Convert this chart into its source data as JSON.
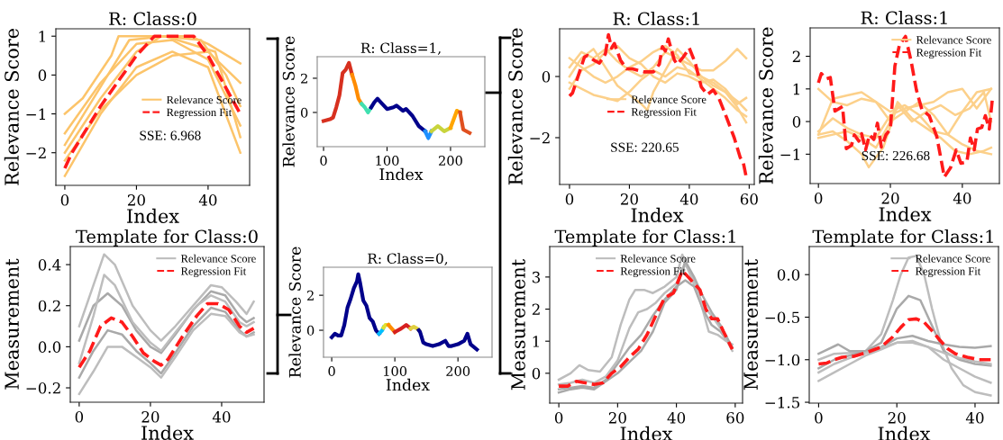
{
  "chart_data": [
    {
      "type": "line",
      "title": "R: Class:0",
      "xlabel": "Index",
      "ylabel": "Relevance Score",
      "xlim": [
        -2.5,
        51.6
      ],
      "ylim": [
        -2.84,
        1.19
      ],
      "xticks": [
        0,
        20,
        40
      ],
      "yticks": [
        {
          "value": -2,
          "label": "−2"
        },
        {
          "value": -1,
          "label": "−1"
        },
        0,
        1
      ],
      "legend": "center right",
      "grid": false,
      "annotations": [
        "SSE: 6.968"
      ],
      "series": [
        {
          "name": "Relevance Score",
          "color": "#fcc46a",
          "x": [
            0,
            10,
            20,
            30,
            40,
            49
          ],
          "values": [
            -2.6,
            -1.0,
            0.2,
            0.6,
            0.2,
            -2.0
          ]
        },
        {
          "color": "#fcc46a",
          "x": [
            0,
            5,
            13,
            15,
            25,
            35,
            40,
            49
          ],
          "values": [
            -1.0,
            -0.6,
            0.5,
            1.0,
            1.0,
            1.0,
            0.8,
            0.3
          ]
        },
        {
          "color": "#fcc46a",
          "x": [
            0,
            10,
            20,
            27,
            38,
            45,
            49
          ],
          "values": [
            -2.0,
            -0.6,
            0.6,
            1.0,
            0.9,
            0,
            -0.8
          ]
        },
        {
          "color": "#fcc46a",
          "x": [
            0,
            10,
            20,
            30,
            40,
            49
          ],
          "values": [
            -1.5,
            -0.2,
            0.8,
            0.9,
            0.4,
            -1.3
          ]
        },
        {
          "color": "#fcc46a",
          "x": [
            0,
            10,
            20,
            30,
            40,
            49
          ],
          "values": [
            -2.2,
            -0.9,
            0.0,
            0.5,
            0.6,
            -0.2
          ]
        },
        {
          "color": "#fcc46a",
          "x": [
            0,
            8,
            18,
            28,
            42,
            49
          ],
          "values": [
            -1.8,
            -0.6,
            0.9,
            1.0,
            0.6,
            -1.6
          ]
        },
        {
          "name": "Regression Fit",
          "color": "#ff1a1a",
          "line_style": "dashed",
          "x": [
            0,
            2,
            10,
            20,
            25,
            36,
            40,
            49
          ],
          "values": [
            -2.4,
            -2.0,
            -0.8,
            0.5,
            1.0,
            1.0,
            0.5,
            -1.0
          ]
        }
      ]
    },
    {
      "type": "line",
      "title": "Template for Class:0",
      "xlabel": "Index",
      "ylabel": "Measurement",
      "xlim": [
        -2.5,
        51.9
      ],
      "ylim": [
        -0.27,
        0.488
      ],
      "xticks": [
        0,
        20,
        40
      ],
      "yticks": [
        {
          "value": -0.2,
          "label": "−0.2"
        },
        {
          "value": 0,
          "label": "0.0"
        },
        0.2,
        0.4
      ],
      "legend": "upper right",
      "grid": false,
      "series": [
        {
          "name": "Relevance Score",
          "color": "#bdbdbd",
          "x": [
            0,
            4,
            7,
            10,
            15,
            20,
            23,
            27,
            33,
            37,
            40,
            44,
            47,
            49
          ],
          "values": [
            0.1,
            0.3,
            0.45,
            0.4,
            0.2,
            0.08,
            0.03,
            0.1,
            0.22,
            0.3,
            0.29,
            0.22,
            0.16,
            0.22
          ]
        },
        {
          "color": "#a9a9a9",
          "x": [
            0,
            4,
            8,
            12,
            16,
            20,
            23,
            27,
            32,
            37,
            41,
            45,
            47,
            49
          ],
          "values": [
            0.03,
            0.2,
            0.26,
            0.2,
            0.08,
            0.0,
            -0.03,
            0.06,
            0.18,
            0.27,
            0.25,
            0.15,
            0.12,
            0.14
          ]
        },
        {
          "color": "#a9a9a9",
          "x": [
            0,
            4,
            8,
            12,
            16,
            20,
            23,
            27,
            32,
            37,
            41,
            45,
            47,
            49
          ],
          "values": [
            -0.15,
            -0.02,
            0.08,
            0.06,
            -0.02,
            -0.08,
            -0.13,
            -0.03,
            0.1,
            0.19,
            0.17,
            0.08,
            0.05,
            0.07
          ]
        },
        {
          "color": "#bdbdbd",
          "x": [
            0,
            4,
            8,
            12,
            16,
            20,
            23,
            27,
            32,
            37,
            41,
            45,
            47,
            49
          ],
          "values": [
            -0.23,
            -0.12,
            0.0,
            0.0,
            -0.05,
            -0.1,
            -0.15,
            -0.05,
            0.08,
            0.16,
            0.15,
            0.07,
            0.05,
            0.06
          ]
        },
        {
          "color": "#bdbdbd",
          "x": [
            0,
            4,
            7,
            10,
            15,
            20,
            23,
            27,
            33,
            37,
            41,
            45,
            47,
            49
          ],
          "values": [
            -0.08,
            0.15,
            0.35,
            0.3,
            0.12,
            0.02,
            -0.02,
            0.07,
            0.2,
            0.25,
            0.22,
            0.12,
            0.1,
            0.12
          ]
        },
        {
          "name": "Regression Fit",
          "color": "#ff1a1a",
          "line_style": "dashed",
          "x": [
            0,
            3,
            6,
            9,
            12,
            15,
            18,
            21,
            23,
            25,
            29,
            33,
            36,
            39,
            42,
            45,
            47,
            49
          ],
          "values": [
            -0.1,
            -0.02,
            0.1,
            0.14,
            0.12,
            0.05,
            -0.03,
            -0.07,
            -0.09,
            -0.06,
            0.05,
            0.15,
            0.21,
            0.21,
            0.18,
            0.1,
            0.07,
            0.09
          ]
        }
      ]
    },
    {
      "type": "line",
      "title": "R: Class=1,",
      "xlabel": "Index",
      "ylabel": "Relevance Score",
      "xlim": [
        -10,
        254
      ],
      "ylim": [
        -2.0,
        3.26
      ],
      "xticks": [
        0,
        100,
        200
      ],
      "yticks": [
        0,
        2
      ],
      "grid": false,
      "series": [
        {
          "color": "#d7301f",
          "x": [
            0,
            10,
            15,
            20,
            25,
            30,
            35,
            40,
            45
          ],
          "values": [
            -0.5,
            -0.4,
            -0.3,
            0.3,
            1.0,
            2.3,
            2.5,
            2.9,
            2.2
          ]
        },
        {
          "color": "#ff8c00",
          "x": [
            45,
            50,
            55,
            60
          ],
          "values": [
            2.2,
            1.6,
            0.8,
            0.5
          ]
        },
        {
          "color": "#40e0b0",
          "x": [
            60,
            65,
            70,
            75
          ],
          "values": [
            0.5,
            0.3,
            0.0,
            0.3
          ]
        },
        {
          "color": "#00008b",
          "x": [
            75,
            80,
            85,
            90,
            100,
            110,
            115,
            125,
            130,
            140,
            150,
            160
          ],
          "values": [
            0.3,
            0.6,
            0.8,
            0.6,
            0.2,
            0.3,
            0.4,
            0.1,
            0.2,
            -0.2,
            -0.8,
            -1.1
          ]
        },
        {
          "color": "#1e90ff",
          "x": [
            160,
            165,
            170
          ],
          "values": [
            -1.1,
            -1.5,
            -1.1
          ]
        },
        {
          "color": "#c8d43c",
          "x": [
            170,
            180,
            190,
            200
          ],
          "values": [
            -1.1,
            -0.8,
            -1.1,
            -0.9
          ]
        },
        {
          "color": "#ffa500",
          "x": [
            200,
            210,
            215
          ],
          "values": [
            -0.9,
            0.1,
            0.0
          ]
        },
        {
          "color": "#e05020",
          "x": [
            215,
            220,
            230
          ],
          "values": [
            0.0,
            -1.0,
            -1.2
          ]
        }
      ]
    },
    {
      "type": "line",
      "title": "R: Class=0,",
      "xlabel": "Index",
      "ylabel": "Relevance Score",
      "xlim": [
        -13,
        254
      ],
      "ylim": [
        -1.54,
        3.6
      ],
      "xticks": [
        0,
        100,
        200
      ],
      "yticks": [
        0,
        2
      ],
      "grid": false,
      "series": [
        {
          "color": "#00008b",
          "x": [
            0,
            5,
            10,
            15,
            20,
            25,
            30,
            35,
            40,
            42,
            45,
            50,
            55,
            60,
            65,
            70,
            75
          ],
          "values": [
            -0.4,
            -0.2,
            -0.3,
            -0.3,
            0.3,
            1.3,
            1.8,
            2.4,
            2.8,
            3.2,
            2.7,
            1.7,
            1.4,
            0.7,
            0.5,
            0.0,
            -0.2
          ]
        },
        {
          "color": "#00bfff",
          "x": [
            75,
            80,
            82
          ],
          "values": [
            -0.2,
            0.0,
            0.15
          ]
        },
        {
          "color": "#e0e030",
          "x": [
            82,
            85,
            90
          ],
          "values": [
            0.15,
            0.3,
            0.3
          ]
        },
        {
          "color": "#ff8c00",
          "x": [
            90,
            100
          ],
          "values": [
            0.3,
            -0.1
          ]
        },
        {
          "color": "#d62020",
          "x": [
            100,
            110,
            118,
            125
          ],
          "values": [
            -0.1,
            0.1,
            0.3,
            0.1
          ]
        },
        {
          "color": "#e0d040",
          "x": [
            125,
            130,
            135,
            138
          ],
          "values": [
            0.1,
            0.2,
            0.1,
            0.0
          ]
        },
        {
          "color": "#00008b",
          "x": [
            138,
            140,
            145,
            150,
            160,
            170,
            180,
            185,
            190,
            200,
            210,
            215,
            220,
            230
          ],
          "values": [
            0.0,
            -0.1,
            -0.7,
            -0.8,
            -0.9,
            -0.8,
            -0.6,
            -0.9,
            -0.9,
            -0.8,
            -0.6,
            -0.2,
            -0.8,
            -1.1
          ]
        }
      ]
    },
    {
      "type": "line",
      "title": "R: Class:1",
      "xlabel": "Index",
      "ylabel": "Relevance Score",
      "xlim": [
        -3.3,
        61.7
      ],
      "ylim": [
        -3.53,
        1.56
      ],
      "xticks": [
        0,
        20,
        40,
        60
      ],
      "yticks": [
        {
          "value": -2,
          "label": "−2"
        },
        0
      ],
      "legend": "center",
      "grid": false,
      "annotations": [
        "SSE: 220.65"
      ],
      "series": [
        {
          "name": "Relevance Score",
          "color": "#fcd08a",
          "x": [
            0,
            4,
            8,
            12,
            16,
            20,
            24,
            28,
            32,
            36,
            40,
            44,
            48,
            52,
            56,
            59
          ],
          "values": [
            0.3,
            0.8,
            0.6,
            0.9,
            0.5,
            0.2,
            0.0,
            0.3,
            0.8,
            0.6,
            0.4,
            0.2,
            0.2,
            0.5,
            0.9,
            0.6
          ]
        },
        {
          "color": "#fcd08a",
          "x": [
            0,
            4,
            8,
            12,
            16,
            20,
            24,
            26,
            28,
            32,
            36,
            40,
            44,
            48,
            52,
            56,
            59
          ],
          "values": [
            0.0,
            0.6,
            0.9,
            0.3,
            -0.3,
            -0.6,
            -0.9,
            -1.1,
            -0.5,
            0.2,
            0.9,
            0.5,
            0.0,
            -0.3,
            -0.5,
            -1.0,
            -1.5
          ]
        },
        {
          "color": "#fcd08a",
          "x": [
            0,
            4,
            8,
            12,
            16,
            20,
            24,
            28,
            32,
            36,
            40,
            44,
            48,
            52,
            56,
            59
          ],
          "values": [
            -0.2,
            -0.4,
            -0.6,
            -0.7,
            -0.8,
            -0.5,
            -0.1,
            0.2,
            0.0,
            0.3,
            0.2,
            -0.1,
            -0.4,
            -0.7,
            -1.1,
            -1.3
          ]
        },
        {
          "color": "#fcd08a",
          "x": [
            0,
            4,
            8,
            12,
            16,
            20,
            24,
            28,
            32,
            36,
            40,
            44,
            48,
            52,
            56,
            59
          ],
          "values": [
            -0.4,
            0.2,
            0.4,
            0.8,
            1.0,
            0.6,
            0.4,
            0.0,
            -0.2,
            0.1,
            0.0,
            -0.2,
            -0.1,
            -0.4,
            -0.9,
            -0.7
          ]
        },
        {
          "color": "#fcd08a",
          "x": [
            0,
            4,
            8,
            12,
            16,
            20,
            24,
            28,
            32,
            36,
            40,
            44,
            48,
            52,
            56,
            59
          ],
          "values": [
            0.6,
            0.3,
            0.0,
            -0.2,
            0.0,
            0.3,
            0.5,
            0.8,
            1.0,
            0.7,
            0.1,
            0.0,
            -0.2,
            -0.5,
            -0.8,
            -1.1
          ]
        },
        {
          "name": "Regression Fit",
          "color": "#ff1a1a",
          "line_style": "dashed",
          "x": [
            0,
            1,
            3,
            5,
            6,
            8,
            10,
            12,
            13,
            14,
            15,
            17,
            19,
            21,
            25,
            28,
            30,
            31,
            32,
            33,
            35,
            36,
            38,
            40,
            42,
            44,
            46,
            48,
            50,
            52,
            55,
            57,
            58,
            59
          ],
          "values": [
            -0.64,
            -0.54,
            0.05,
            0.64,
            0.69,
            0.54,
            0.44,
            0.74,
            1.37,
            0.93,
            1.08,
            0.54,
            0.25,
            0.25,
            0.15,
            0.15,
            0.4,
            0.98,
            0.83,
            1.23,
            0.54,
            0.4,
            0.64,
            0.93,
            0.44,
            -0.34,
            -0.59,
            -0.44,
            -0.74,
            -1.23,
            -2.0,
            -2.65,
            -2.8,
            -3.28
          ]
        }
      ]
    },
    {
      "type": "line",
      "title": "R: Class:1",
      "xlabel": "Index",
      "ylabel": "Relevance Score",
      "xlim": [
        -2.3,
        50.3
      ],
      "ylim": [
        -1.9,
        2.87
      ],
      "xticks": [
        0,
        20,
        40
      ],
      "yticks": [
        {
          "value": -1,
          "label": "−1"
        },
        0,
        1,
        2
      ],
      "legend": "upper right",
      "grid": false,
      "annotations": [
        "SSE: 226.68"
      ],
      "series": [
        {
          "name": "Relevance Score",
          "color": "#fcd08a",
          "x": [
            0,
            4,
            8,
            12,
            16,
            20,
            24,
            28,
            32,
            36,
            40,
            44,
            48
          ],
          "values": [
            1.0,
            0.6,
            0.5,
            0.7,
            0.6,
            0.3,
            0.5,
            0.2,
            -0.3,
            -0.4,
            0.3,
            0.9,
            1.0
          ]
        },
        {
          "color": "#fcd08a",
          "x": [
            0,
            4,
            8,
            12,
            14,
            18,
            22,
            26,
            30,
            34,
            38,
            42,
            46,
            48
          ],
          "values": [
            -0.4,
            -0.3,
            -0.6,
            -1.0,
            -1.4,
            -0.8,
            0.5,
            0.0,
            0.3,
            0.5,
            0.2,
            0.4,
            0.9,
            0.0
          ]
        },
        {
          "color": "#fcd08a",
          "x": [
            0,
            4,
            8,
            12,
            16,
            20,
            22,
            26,
            30,
            34,
            38,
            42,
            46,
            48
          ],
          "values": [
            -0.5,
            -0.4,
            -0.3,
            -0.5,
            -0.8,
            0.0,
            0.6,
            0.1,
            -0.2,
            -0.5,
            -0.9,
            -1.0,
            -0.9,
            -0.8
          ]
        },
        {
          "color": "#fcd08a",
          "x": [
            0,
            4,
            8,
            12,
            16,
            20,
            24,
            28,
            32,
            36,
            40,
            44,
            48
          ],
          "values": [
            -0.3,
            0.1,
            -0.2,
            -0.4,
            -0.5,
            0.2,
            0.4,
            0.5,
            0.6,
            0.9,
            1.0,
            0.4,
            1.0
          ]
        },
        {
          "color": "#fcd08a",
          "x": [
            0,
            4,
            8,
            12,
            16,
            20,
            24,
            28,
            32,
            36,
            40,
            44,
            48
          ],
          "values": [
            -0.4,
            0.7,
            0.8,
            0.9,
            0.6,
            0.0,
            0.3,
            0.6,
            0.2,
            -0.4,
            -0.7,
            -0.9,
            -1.0
          ]
        },
        {
          "name": "Regression Fit",
          "color": "#ff1a1a",
          "line_style": "dashed",
          "x": [
            0,
            0.8,
            2.25,
            3.3,
            4.6,
            6.7,
            7.75,
            9.2,
            10,
            11.25,
            12,
            13.1,
            14.2,
            15.4,
            16.4,
            17.5,
            18.75,
            20,
            21.25,
            22.5,
            24.2,
            25.8,
            27.25,
            28.75,
            30.8,
            32.9,
            35,
            36.7,
            38.3,
            39.6,
            41.25,
            42.25,
            43.3,
            44.2,
            45.4,
            46.4,
            47.5,
            48.3
          ],
          "values": [
            1.19,
            1.47,
            1.31,
            1.35,
            0.32,
            0.46,
            -0.83,
            -0.73,
            -0.41,
            -0.6,
            -0.37,
            -0.87,
            -0.41,
            -0.55,
            -0.05,
            -0.78,
            -0.41,
            -0.23,
            1.7,
            2.34,
            2.61,
            1.83,
            0.96,
            0.37,
            0.18,
            -0.46,
            -1.7,
            -1.42,
            -0.87,
            -1.28,
            -1.24,
            -0.5,
            -0.87,
            -0.23,
            -0.18,
            0.18,
            -0.23,
            0.64
          ]
        }
      ]
    },
    {
      "type": "line",
      "title": "Template for Class:1",
      "xlabel": "Index",
      "ylabel": "Measurement",
      "xlim": [
        -3.1,
        62.5
      ],
      "ylim": [
        -0.93,
        3.95
      ],
      "xticks": [
        0,
        20,
        40,
        60
      ],
      "yticks": [
        0,
        1,
        2,
        3
      ],
      "legend": "upper center",
      "grid": false,
      "series": [
        {
          "name": "Relevance Score",
          "color": "#bdbdbd",
          "x": [
            0,
            4,
            7,
            10,
            14,
            18,
            21,
            24,
            26,
            29,
            32,
            36,
            40,
            42,
            45,
            48,
            51,
            54,
            57,
            59
          ],
          "values": [
            -0.2,
            0.0,
            0.25,
            0.1,
            0.05,
            0.5,
            1.5,
            2.3,
            2.6,
            2.6,
            2.5,
            2.7,
            3.0,
            3.7,
            3.0,
            2.3,
            1.3,
            1.2,
            1.0,
            0.9
          ]
        },
        {
          "color": "#a9a9a9",
          "x": [
            0,
            4,
            8,
            12,
            16,
            20,
            24,
            28,
            32,
            36,
            40,
            43,
            46,
            49,
            52,
            55,
            59
          ],
          "values": [
            -0.5,
            -0.45,
            -0.4,
            -0.45,
            -0.2,
            0.3,
            0.8,
            1.2,
            1.8,
            2.3,
            2.7,
            2.9,
            2.7,
            2.0,
            1.5,
            1.3,
            0.8
          ]
        },
        {
          "color": "#bdbdbd",
          "x": [
            0,
            4,
            8,
            12,
            16,
            20,
            24,
            27,
            30,
            33,
            36,
            40,
            43,
            46,
            49,
            52,
            55,
            59
          ],
          "values": [
            -0.35,
            -0.3,
            -0.2,
            -0.3,
            -0.1,
            0.4,
            1.4,
            1.9,
            2.0,
            2.2,
            2.5,
            2.8,
            3.4,
            2.9,
            2.1,
            1.8,
            1.4,
            0.7
          ]
        },
        {
          "color": "#a9a9a9",
          "x": [
            0,
            4,
            8,
            12,
            16,
            20,
            24,
            28,
            32,
            36,
            40,
            43,
            46,
            49,
            52,
            55,
            59
          ],
          "values": [
            -0.6,
            -0.5,
            -0.45,
            -0.5,
            -0.25,
            0.0,
            0.35,
            0.7,
            1.3,
            2.2,
            2.6,
            3.5,
            3.0,
            2.4,
            1.9,
            1.5,
            0.8
          ]
        },
        {
          "name": "Regression Fit",
          "color": "#ff1a1a",
          "line_style": "dashed",
          "x": [
            0,
            3,
            6,
            9,
            12,
            15,
            18,
            21,
            24,
            27,
            30,
            33,
            36,
            39,
            42,
            44,
            46,
            48,
            50,
            52,
            54,
            56,
            59
          ],
          "values": [
            -0.4,
            -0.4,
            -0.25,
            -0.3,
            -0.35,
            -0.3,
            0.0,
            0.2,
            0.5,
            0.75,
            1.2,
            1.8,
            2.35,
            2.5,
            3.2,
            3.0,
            2.8,
            2.6,
            2.0,
            1.7,
            1.7,
            1.3,
            0.75
          ]
        }
      ]
    },
    {
      "type": "line",
      "title": "Template for Class:1",
      "xlabel": "Index",
      "ylabel": "Measurement",
      "xlim": [
        -2.4,
        46
      ],
      "ylim": [
        -1.51,
        0.33
      ],
      "xticks": [
        0,
        20,
        40
      ],
      "yticks": [
        {
          "value": -1.5,
          "label": "−1.5"
        },
        {
          "value": -1.0,
          "label": "−1.0"
        },
        {
          "value": -0.5,
          "label": "−0.5"
        },
        {
          "value": 0,
          "label": "0.0"
        }
      ],
      "legend": "upper right",
      "grid": false,
      "series": [
        {
          "name": "Relevance Score",
          "color": "#bdbdbd",
          "x": [
            0,
            4,
            8,
            12,
            16,
            19,
            21,
            23,
            25,
            27,
            29,
            31,
            34,
            37,
            40,
            44
          ],
          "values": [
            -1.0,
            -0.93,
            -0.92,
            -0.9,
            -0.7,
            -0.3,
            0.0,
            0.2,
            0.22,
            0.0,
            -0.4,
            -0.75,
            -1.1,
            -1.3,
            -1.38,
            -1.42
          ]
        },
        {
          "color": "#a9a9a9",
          "x": [
            0,
            5,
            8,
            12,
            16,
            20,
            24,
            28,
            32,
            36,
            40,
            44
          ],
          "values": [
            -0.93,
            -0.82,
            -0.9,
            -0.9,
            -0.85,
            -0.75,
            -0.72,
            -0.78,
            -0.82,
            -0.85,
            -0.86,
            -0.84
          ]
        },
        {
          "color": "#bdbdbd",
          "x": [
            0,
            4,
            8,
            12,
            16,
            20,
            24,
            28,
            32,
            36,
            40,
            44
          ],
          "values": [
            -1.25,
            -1.15,
            -1.05,
            -0.95,
            -0.88,
            -0.8,
            -0.78,
            -0.85,
            -1.0,
            -1.1,
            -1.2,
            -1.27
          ]
        },
        {
          "color": "#a9a9a9",
          "x": [
            0,
            4,
            8,
            12,
            16,
            20,
            23,
            26,
            29,
            32,
            36,
            40,
            44
          ],
          "values": [
            -1.1,
            -1.0,
            -0.95,
            -0.9,
            -0.8,
            -0.4,
            -0.25,
            -0.3,
            -0.6,
            -0.9,
            -1.0,
            -1.05,
            -1.07
          ]
        },
        {
          "color": "#bdbdbd",
          "x": [
            0,
            4,
            8,
            12,
            16,
            20,
            24,
            28,
            32,
            36,
            40,
            44
          ],
          "values": [
            -1.15,
            -1.05,
            -0.98,
            -0.92,
            -0.86,
            -0.8,
            -0.8,
            -0.85,
            -0.92,
            -0.98,
            -1.02,
            -1.05
          ]
        },
        {
          "name": "Regression Fit",
          "color": "#ff1a1a",
          "line_style": "dashed",
          "x": [
            0,
            2,
            4,
            6,
            9,
            12,
            16,
            19,
            21,
            23,
            25,
            27,
            29,
            31,
            33,
            35,
            38,
            41,
            44
          ],
          "values": [
            -1.05,
            -1.04,
            -1.0,
            -0.97,
            -0.96,
            -0.92,
            -0.85,
            -0.73,
            -0.62,
            -0.53,
            -0.52,
            -0.56,
            -0.66,
            -0.77,
            -0.87,
            -0.93,
            -0.97,
            -1.0,
            -1.0
          ]
        }
      ]
    }
  ]
}
